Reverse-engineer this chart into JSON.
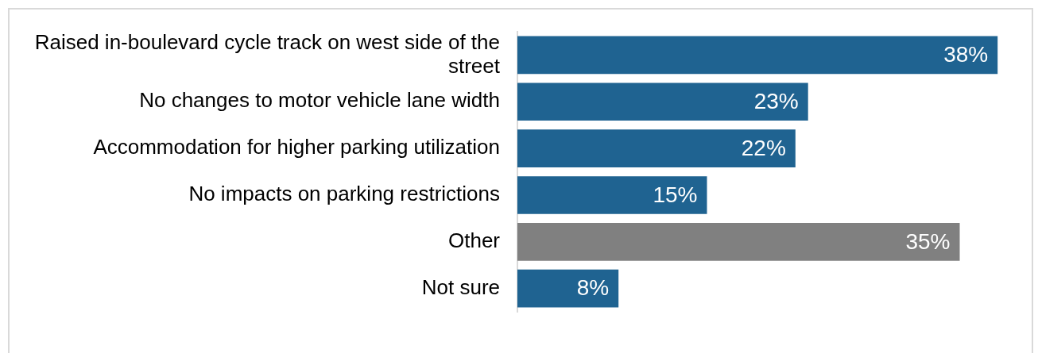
{
  "chart_data": {
    "type": "bar",
    "orientation": "horizontal",
    "categories": [
      "Raised in-boulevard cycle track on west side of the street",
      "No changes to motor vehicle lane width",
      "Accommodation for higher parking utilization",
      "No impacts on parking restrictions",
      "Other",
      "Not sure"
    ],
    "values": [
      38,
      23,
      22,
      15,
      35,
      8
    ],
    "colors": [
      "#1f6391",
      "#1f6391",
      "#1f6391",
      "#1f6391",
      "#808080",
      "#1f6391"
    ],
    "value_labels": [
      "38%",
      "23%",
      "22%",
      "15%",
      "35%",
      "8%"
    ],
    "legend": false,
    "tick_labels": "y"
  }
}
